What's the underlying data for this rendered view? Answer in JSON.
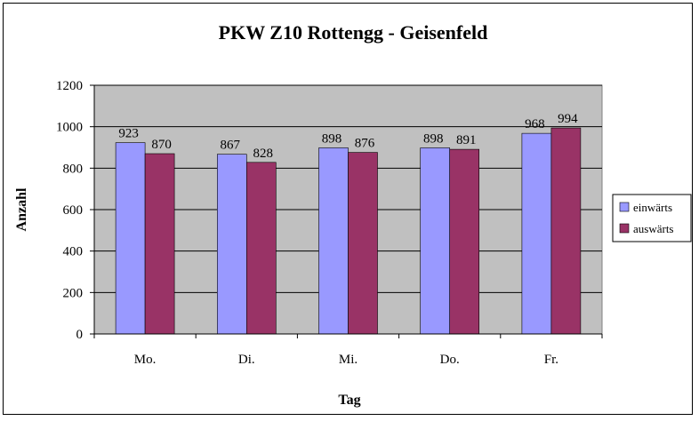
{
  "chart_data": {
    "type": "bar",
    "title": "PKW Z10 Rottengg - Geisenfeld",
    "xlabel": "Tag",
    "ylabel": "Anzahl",
    "categories": [
      "Mo.",
      "Di.",
      "Mi.",
      "Do.",
      "Fr."
    ],
    "series": [
      {
        "name": "einwärts",
        "values": [
          923,
          867,
          898,
          898,
          968
        ],
        "color": "#9999ff"
      },
      {
        "name": "auswärts",
        "values": [
          870,
          828,
          876,
          891,
          994
        ],
        "color": "#993366"
      }
    ],
    "ylim": [
      0,
      1200
    ],
    "yticks": [
      0,
      200,
      400,
      600,
      800,
      1000,
      1200
    ],
    "grid": true,
    "plot_background": "#c0c0c0",
    "legend": "right"
  }
}
